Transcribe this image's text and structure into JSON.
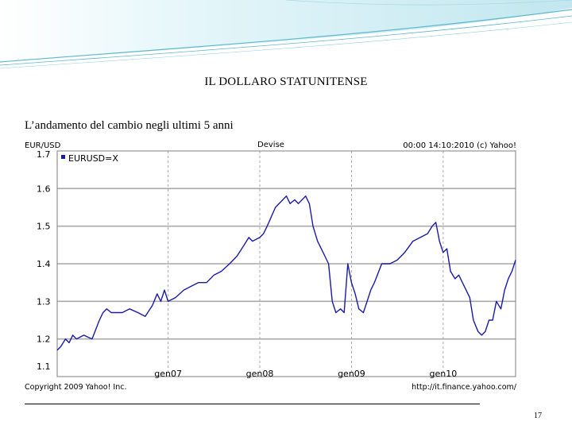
{
  "slide": {
    "title": "IL DOLLARO STATUNITENSE",
    "subtitle": "L’andamento del cambio negli ultimi 5 anni",
    "page_number": "17"
  },
  "colors": {
    "series": "#1a1aa8",
    "grid": "#a9a9a9",
    "plot_border": "#7f7f7f",
    "swoosh": "#7ec8d8"
  },
  "chart_data": {
    "type": "line",
    "ylabel": "EUR/USD",
    "header_center": "Devise",
    "header_right": "00:00 14:10:2010 (c) Yahoo!",
    "footer_left": "Copyright 2009 Yahoo! Inc.",
    "footer_right": "http://it.finance.yahoo.com/",
    "legend": {
      "label": "EURUSD=X",
      "position": "top-left"
    },
    "ylim": [
      1.1,
      1.7
    ],
    "yticks": [
      "1.7",
      "1.6",
      "1.5",
      "1.4",
      "1.3",
      "1.2",
      "1.1"
    ],
    "xlim": [
      2005.79,
      2010.79
    ],
    "xticks": [
      {
        "label": "gen07",
        "value": 2007.0
      },
      {
        "label": "gen08",
        "value": 2008.0
      },
      {
        "label": "gen09",
        "value": 2009.0
      },
      {
        "label": "gen10",
        "value": 2010.0
      }
    ],
    "grid": true,
    "series": [
      {
        "name": "EURUSD=X",
        "x": [
          2005.79,
          2005.83,
          2005.88,
          2005.92,
          2005.96,
          2006.0,
          2006.08,
          2006.17,
          2006.25,
          2006.29,
          2006.33,
          2006.38,
          2006.42,
          2006.5,
          2006.58,
          2006.67,
          2006.75,
          2006.83,
          2006.88,
          2006.92,
          2006.96,
          2007.0,
          2007.08,
          2007.17,
          2007.25,
          2007.33,
          2007.42,
          2007.5,
          2007.58,
          2007.67,
          2007.75,
          2007.83,
          2007.88,
          2007.92,
          2008.0,
          2008.04,
          2008.08,
          2008.17,
          2008.21,
          2008.25,
          2008.29,
          2008.33,
          2008.38,
          2008.42,
          2008.5,
          2008.54,
          2008.58,
          2008.63,
          2008.67,
          2008.71,
          2008.75,
          2008.79,
          2008.83,
          2008.88,
          2008.92,
          2008.96,
          2009.0,
          2009.04,
          2009.08,
          2009.13,
          2009.17,
          2009.21,
          2009.25,
          2009.33,
          2009.42,
          2009.5,
          2009.58,
          2009.67,
          2009.75,
          2009.83,
          2009.88,
          2009.92,
          2009.96,
          2010.0,
          2010.04,
          2010.08,
          2010.13,
          2010.17,
          2010.21,
          2010.25,
          2010.29,
          2010.33,
          2010.38,
          2010.42,
          2010.46,
          2010.5,
          2010.54,
          2010.58,
          2010.63,
          2010.67,
          2010.71,
          2010.75,
          2010.79
        ],
        "values": [
          1.17,
          1.18,
          1.2,
          1.19,
          1.21,
          1.2,
          1.21,
          1.2,
          1.25,
          1.27,
          1.28,
          1.27,
          1.27,
          1.27,
          1.28,
          1.27,
          1.26,
          1.29,
          1.32,
          1.3,
          1.33,
          1.3,
          1.31,
          1.33,
          1.34,
          1.35,
          1.35,
          1.37,
          1.38,
          1.4,
          1.42,
          1.45,
          1.47,
          1.46,
          1.47,
          1.48,
          1.5,
          1.55,
          1.56,
          1.57,
          1.58,
          1.56,
          1.57,
          1.56,
          1.58,
          1.56,
          1.5,
          1.46,
          1.44,
          1.42,
          1.4,
          1.3,
          1.27,
          1.28,
          1.27,
          1.4,
          1.35,
          1.32,
          1.28,
          1.27,
          1.3,
          1.33,
          1.35,
          1.4,
          1.4,
          1.41,
          1.43,
          1.46,
          1.47,
          1.48,
          1.5,
          1.51,
          1.46,
          1.43,
          1.44,
          1.38,
          1.36,
          1.37,
          1.35,
          1.33,
          1.31,
          1.25,
          1.22,
          1.21,
          1.22,
          1.25,
          1.25,
          1.3,
          1.28,
          1.33,
          1.36,
          1.38,
          1.41
        ]
      }
    ]
  }
}
